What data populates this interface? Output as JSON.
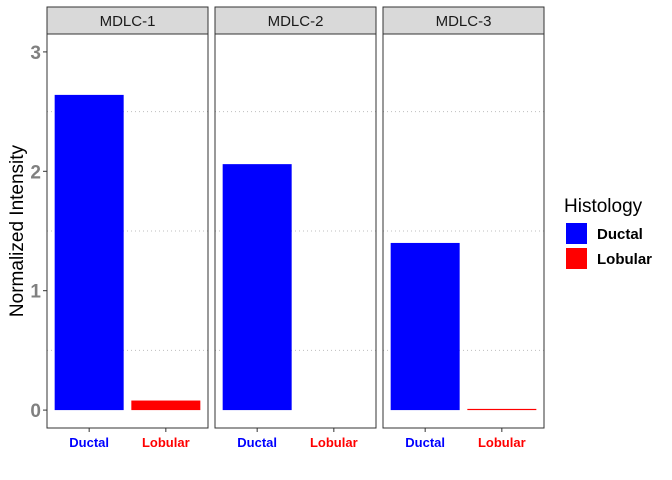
{
  "chart_data": {
    "type": "bar",
    "ylabel": "Normalized Intensity",
    "xlabel": "",
    "ylim": [
      -0.15,
      3.15
    ],
    "yticks": [
      0,
      1,
      2,
      3
    ],
    "grid": "horizontal minor dotted",
    "legend": {
      "title": "Histology",
      "placement": "right",
      "entries": [
        {
          "label": "Ductal",
          "color": "#0000FF"
        },
        {
          "label": "Lobular",
          "color": "#FF0000"
        }
      ]
    },
    "categories": [
      "Ductal",
      "Lobular"
    ],
    "category_colors": {
      "Ductal": "#0000FF",
      "Lobular": "#FF0000"
    },
    "panels": [
      {
        "title": "MDLC-1",
        "values": [
          2.64,
          0.08
        ]
      },
      {
        "title": "MDLC-2",
        "values": [
          2.06,
          0.0
        ]
      },
      {
        "title": "MDLC-3",
        "values": [
          1.4,
          0.01
        ]
      }
    ]
  }
}
